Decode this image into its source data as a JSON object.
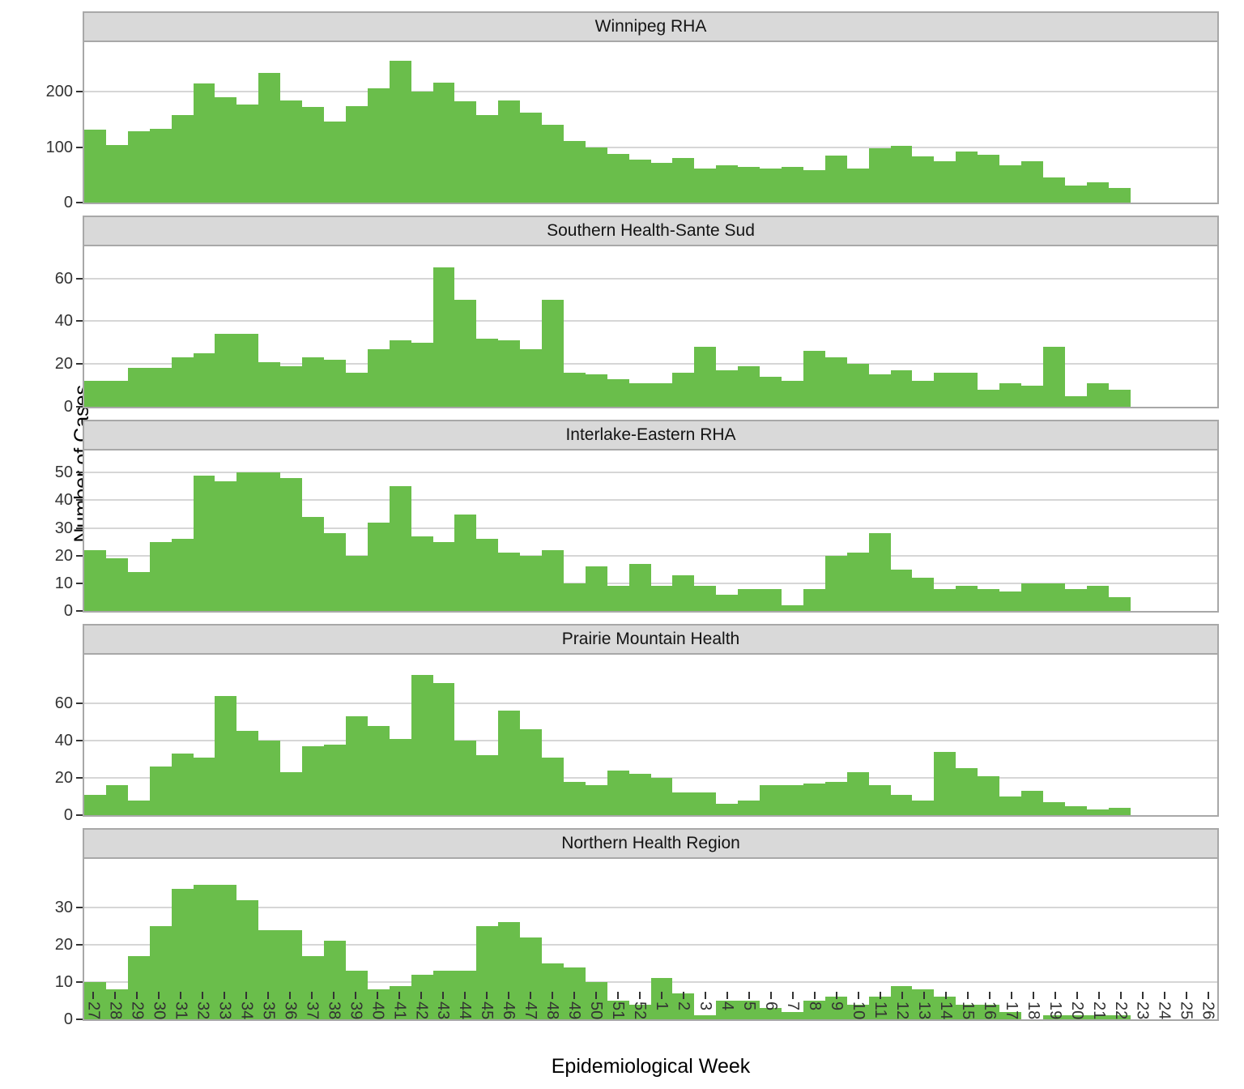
{
  "chart_data": {
    "type": "bar",
    "title": "",
    "xlabel": "Epidemiological Week",
    "ylabel": "Number of Cases",
    "bar_color": "#6abe4b",
    "grid": true,
    "legend": false,
    "x_labels": [
      "27",
      "28",
      "29",
      "30",
      "31",
      "32",
      "33",
      "34",
      "35",
      "36",
      "37",
      "38",
      "39",
      "40",
      "41",
      "42",
      "43",
      "44",
      "45",
      "46",
      "47",
      "48",
      "49",
      "50",
      "51",
      "52",
      "1",
      "2",
      "3",
      "4",
      "5",
      "6",
      "7",
      "8",
      "9",
      "10",
      "11",
      "12",
      "13",
      "14",
      "15",
      "16",
      "17",
      "18",
      "19",
      "20",
      "21",
      "22",
      "23",
      "24",
      "25",
      "26"
    ],
    "facets": [
      {
        "title": "Winnipeg RHA",
        "y_ticks": [
          0,
          100,
          200
        ],
        "ylim": [
          0,
          290
        ],
        "values": [
          132,
          104,
          129,
          134,
          158,
          215,
          190,
          177,
          235,
          184,
          173,
          147,
          175,
          206,
          256,
          200,
          217,
          183,
          158,
          184,
          162,
          140,
          112,
          100,
          88,
          78,
          72,
          80,
          61,
          68,
          65,
          61,
          65,
          58,
          85,
          61,
          98,
          103,
          84,
          75,
          92,
          86,
          68,
          75,
          46,
          31,
          37,
          26,
          0,
          0,
          0,
          0
        ]
      },
      {
        "title": "Southern Health-Sante Sud",
        "y_ticks": [
          0,
          20,
          40,
          60
        ],
        "ylim": [
          0,
          75
        ],
        "values": [
          12,
          12,
          18,
          18,
          23,
          25,
          34,
          34,
          21,
          19,
          23,
          22,
          16,
          27,
          31,
          30,
          65,
          50,
          32,
          31,
          27,
          50,
          16,
          15,
          13,
          11,
          11,
          16,
          28,
          17,
          19,
          14,
          12,
          26,
          23,
          20,
          15,
          17,
          12,
          16,
          16,
          8,
          11,
          10,
          28,
          5,
          11,
          8,
          0,
          0,
          0,
          0
        ]
      },
      {
        "title": "Interlake-Eastern RHA",
        "y_ticks": [
          0,
          10,
          20,
          30,
          40,
          50
        ],
        "ylim": [
          0,
          58
        ],
        "values": [
          22,
          19,
          14,
          25,
          26,
          49,
          47,
          50,
          50,
          48,
          34,
          28,
          20,
          32,
          45,
          27,
          25,
          35,
          26,
          21,
          20,
          22,
          10,
          16,
          9,
          17,
          9,
          13,
          9,
          6,
          8,
          8,
          2,
          8,
          20,
          21,
          28,
          15,
          12,
          8,
          9,
          8,
          7,
          10,
          10,
          8,
          9,
          5,
          0,
          0,
          0,
          0
        ]
      },
      {
        "title": "Prairie Mountain Health",
        "y_ticks": [
          0,
          20,
          40,
          60
        ],
        "ylim": [
          0,
          86
        ],
        "values": [
          11,
          16,
          8,
          26,
          33,
          31,
          64,
          45,
          40,
          23,
          37,
          38,
          53,
          48,
          41,
          75,
          71,
          40,
          32,
          56,
          46,
          31,
          18,
          16,
          24,
          22,
          20,
          12,
          12,
          6,
          8,
          16,
          16,
          17,
          18,
          23,
          16,
          11,
          8,
          34,
          25,
          21,
          10,
          13,
          7,
          5,
          3,
          4,
          0,
          0,
          0,
          0
        ]
      },
      {
        "title": "Northern Health Region",
        "y_ticks": [
          0,
          10,
          20,
          30
        ],
        "ylim": [
          0,
          43
        ],
        "values": [
          10,
          8,
          17,
          25,
          35,
          36,
          36,
          32,
          24,
          24,
          17,
          21,
          13,
          8,
          9,
          12,
          13,
          13,
          25,
          26,
          22,
          15,
          14,
          10,
          5,
          4,
          11,
          7,
          1,
          5,
          5,
          3,
          2,
          5,
          6,
          4,
          6,
          9,
          8,
          6,
          4,
          4,
          2,
          0,
          1,
          1,
          1,
          1,
          0,
          0,
          0,
          0
        ]
      }
    ]
  }
}
